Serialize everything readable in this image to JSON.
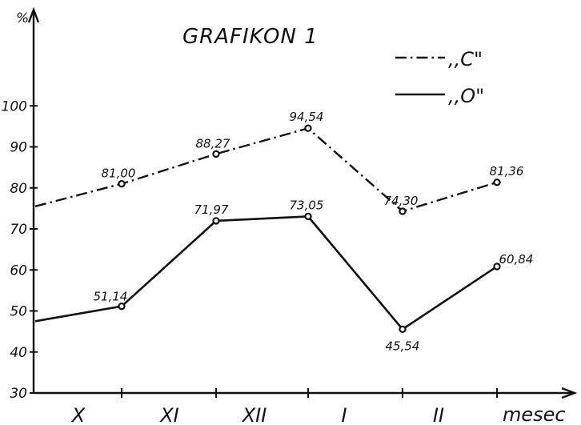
{
  "chart_data": {
    "type": "line",
    "title": "GRAFIKON 1",
    "ylabel": "%",
    "xlabel": "mesec",
    "categories": [
      "X",
      "XI",
      "XII",
      "I",
      "II"
    ],
    "y_ticks": [
      "30",
      "40",
      "50",
      "60",
      "70",
      "80",
      "90",
      "100"
    ],
    "ylim": [
      30,
      110
    ],
    "legend_position": "top-right",
    "grid": false,
    "series": [
      {
        "name": ",,C\"",
        "style": "dash-dot",
        "start_value": 75.5,
        "values": [
          81.0,
          88.27,
          94.54,
          74.3,
          81.36
        ],
        "labels": [
          "81,00",
          "88,27",
          "94,54",
          "74,30",
          "81,36"
        ]
      },
      {
        "name": ",,O\"",
        "style": "solid",
        "start_value": 47.5,
        "values": [
          51.14,
          71.97,
          73.05,
          45.54,
          60.84
        ],
        "labels": [
          "51,14",
          "71,97",
          "73,05",
          "45,54",
          "60,84"
        ]
      }
    ]
  }
}
